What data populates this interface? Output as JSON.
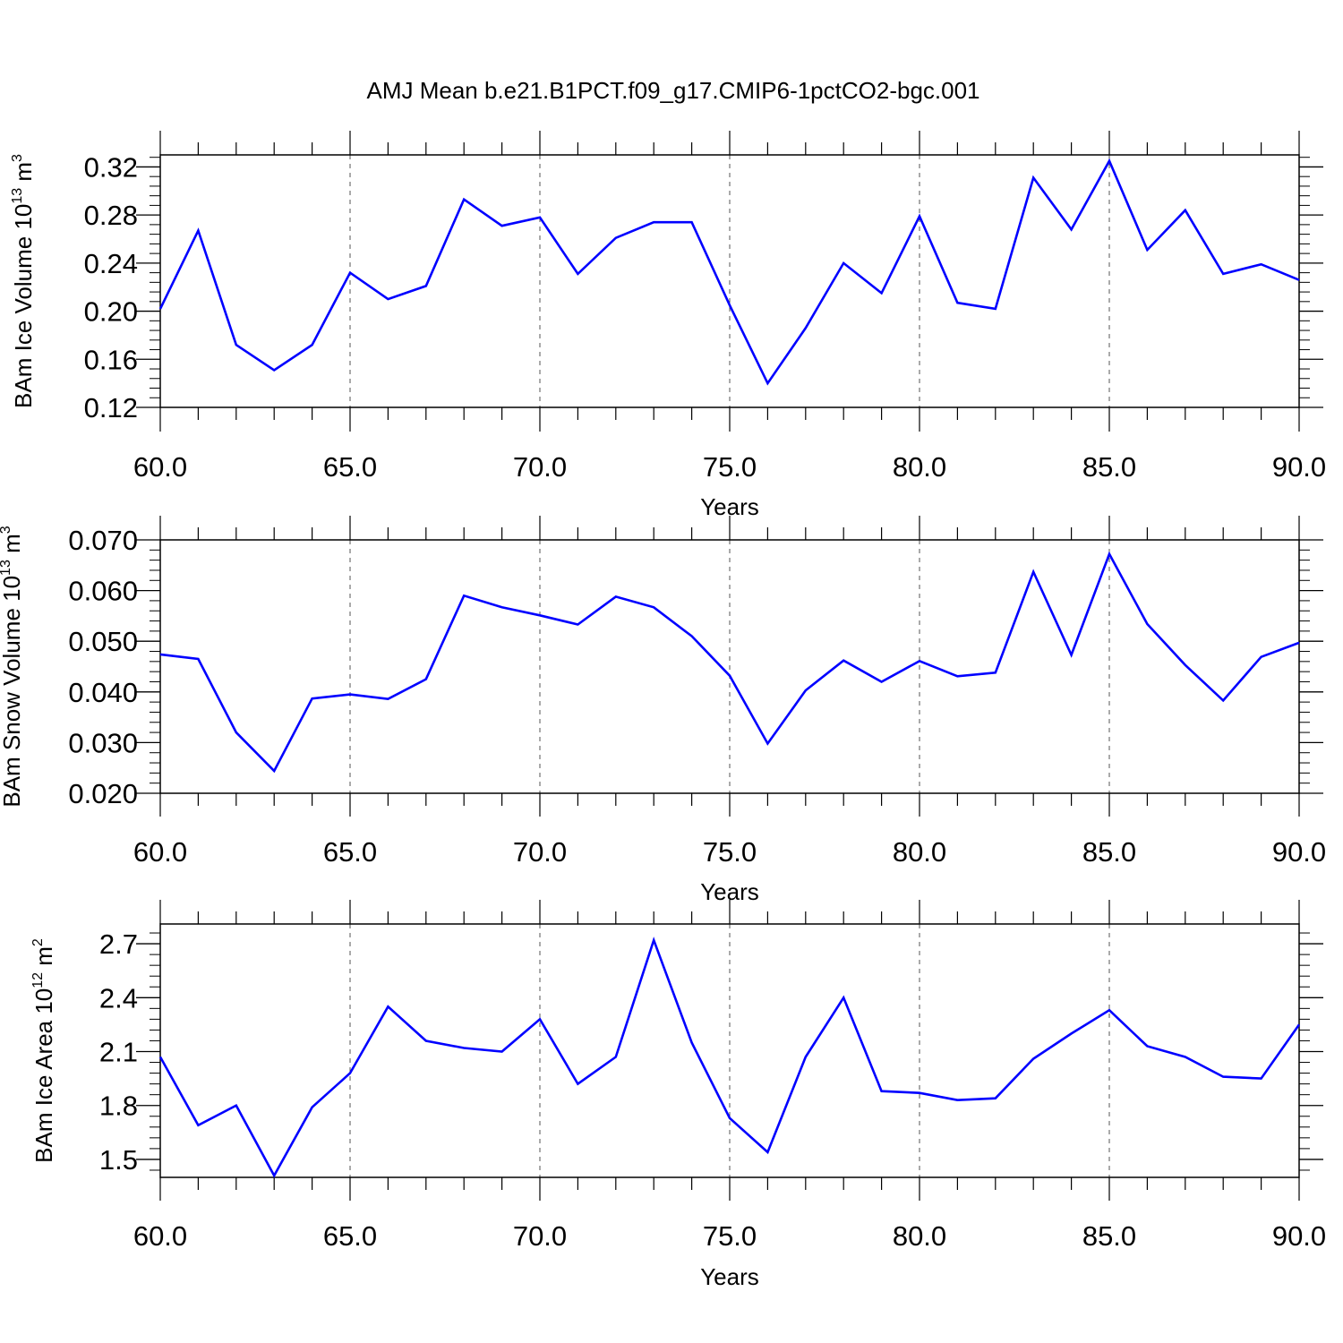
{
  "figure_title": "AMJ Mean b.e21.B1PCT.f09_g17.CMIP6-1pctCO2-bgc.001",
  "line_color": "#0000ff",
  "chart_data": [
    {
      "type": "line",
      "ylabel": {
        "text": "BAm Ice Volume 10",
        "exp": "13",
        "unit": " m",
        "unit_exp": "3"
      },
      "xlabel": "Years",
      "xlim": [
        60,
        90
      ],
      "ylim": [
        0.12,
        0.33
      ],
      "xticks": [
        60,
        65,
        70,
        75,
        80,
        85,
        90
      ],
      "xtick_labels": [
        "60.0",
        "65.0",
        "70.0",
        "75.0",
        "80.0",
        "85.0",
        "90.0"
      ],
      "yticks": [
        0.12,
        0.16,
        0.2,
        0.24,
        0.28,
        0.32
      ],
      "ytick_labels": [
        "0.12",
        "0.16",
        "0.20",
        "0.24",
        "0.28",
        "0.32"
      ],
      "y_minor_step": 0.008,
      "x": [
        60,
        61,
        62,
        63,
        64,
        65,
        66,
        67,
        68,
        69,
        70,
        71,
        72,
        73,
        74,
        75,
        76,
        77,
        78,
        79,
        80,
        81,
        82,
        83,
        84,
        85,
        86,
        87,
        88,
        89,
        90
      ],
      "series": [
        {
          "values": [
            0.202,
            0.267,
            0.172,
            0.151,
            0.172,
            0.232,
            0.21,
            0.221,
            0.293,
            0.271,
            0.278,
            0.231,
            0.261,
            0.274,
            0.274,
            0.205,
            0.14,
            0.186,
            0.24,
            0.215,
            0.279,
            0.207,
            0.202,
            0.311,
            0.268,
            0.325,
            0.251,
            0.284,
            0.231,
            0.239,
            0.226
          ]
        }
      ]
    },
    {
      "type": "line",
      "ylabel": {
        "text": "BAm Snow Volume 10",
        "exp": "13",
        "unit": " m",
        "unit_exp": "3"
      },
      "xlabel": "Years",
      "xlim": [
        60,
        90
      ],
      "ylim": [
        0.02,
        0.07
      ],
      "xticks": [
        60,
        65,
        70,
        75,
        80,
        85,
        90
      ],
      "xtick_labels": [
        "60.0",
        "65.0",
        "70.0",
        "75.0",
        "80.0",
        "85.0",
        "90.0"
      ],
      "yticks": [
        0.02,
        0.03,
        0.04,
        0.05,
        0.06,
        0.07
      ],
      "ytick_labels": [
        "0.020",
        "0.030",
        "0.040",
        "0.050",
        "0.060",
        "0.070"
      ],
      "y_minor_step": 0.002,
      "x": [
        60,
        61,
        62,
        63,
        64,
        65,
        66,
        67,
        68,
        69,
        70,
        71,
        72,
        73,
        74,
        75,
        76,
        77,
        78,
        79,
        80,
        81,
        82,
        83,
        84,
        85,
        86,
        87,
        88,
        89,
        90
      ],
      "series": [
        {
          "values": [
            0.0474,
            0.0465,
            0.032,
            0.0244,
            0.0387,
            0.0395,
            0.0386,
            0.0425,
            0.059,
            0.0567,
            0.0551,
            0.0533,
            0.0588,
            0.0567,
            0.051,
            0.0432,
            0.0298,
            0.0403,
            0.0462,
            0.042,
            0.0461,
            0.0431,
            0.0438,
            0.0637,
            0.0473,
            0.0672,
            0.0534,
            0.0453,
            0.0383,
            0.0469,
            0.0497
          ]
        }
      ]
    },
    {
      "type": "line",
      "ylabel": {
        "text": "BAm Ice Area 10",
        "exp": "12",
        "unit": " m",
        "unit_exp": "2"
      },
      "xlabel": "Years",
      "xlim": [
        60,
        90
      ],
      "ylim": [
        1.4,
        2.81
      ],
      "xticks": [
        60,
        65,
        70,
        75,
        80,
        85,
        90
      ],
      "xtick_labels": [
        "60.0",
        "65.0",
        "70.0",
        "75.0",
        "80.0",
        "85.0",
        "90.0"
      ],
      "yticks": [
        1.5,
        1.8,
        2.1,
        2.4,
        2.7
      ],
      "ytick_labels": [
        "1.5",
        "1.8",
        "2.1",
        "2.4",
        "2.7"
      ],
      "y_minor_step": 0.06,
      "x": [
        60,
        61,
        62,
        63,
        64,
        65,
        66,
        67,
        68,
        69,
        70,
        71,
        72,
        73,
        74,
        75,
        76,
        77,
        78,
        79,
        80,
        81,
        82,
        83,
        84,
        85,
        86,
        87,
        88,
        89,
        90
      ],
      "series": [
        {
          "values": [
            2.07,
            1.69,
            1.8,
            1.41,
            1.79,
            1.98,
            2.35,
            2.16,
            2.12,
            2.1,
            2.28,
            1.92,
            2.07,
            2.72,
            2.15,
            1.73,
            1.54,
            2.07,
            2.4,
            1.88,
            1.87,
            1.83,
            1.84,
            2.06,
            2.2,
            2.33,
            2.13,
            2.07,
            1.96,
            1.95,
            2.25
          ]
        }
      ]
    }
  ]
}
